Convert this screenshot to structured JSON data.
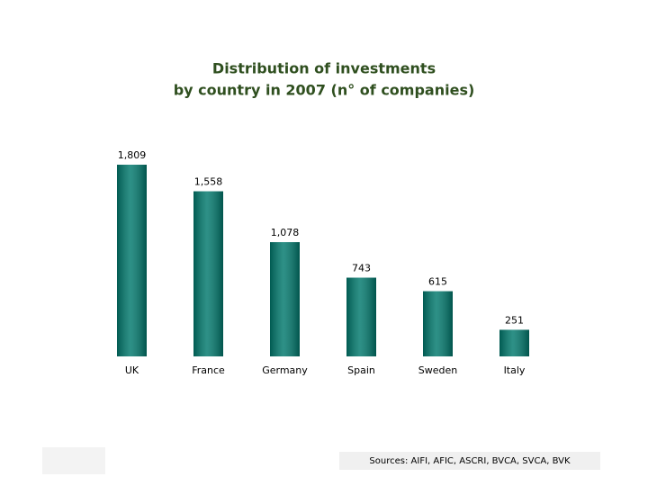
{
  "chart_data": {
    "type": "bar",
    "title": [
      "Distribution of investments",
      "by country in 2007 (n° of companies)"
    ],
    "categories": [
      "UK",
      "France",
      "Germany",
      "Spain",
      "Sweden",
      "Italy"
    ],
    "values": [
      1809,
      1558,
      1078,
      743,
      615,
      251
    ],
    "value_labels": [
      "1,809",
      "1,558",
      "1,078",
      "743",
      "615",
      "251"
    ],
    "color": "#00786c",
    "source": "Sources: AIFI, AFIC, ASCRI, BVCA, SVCA, BVK"
  }
}
